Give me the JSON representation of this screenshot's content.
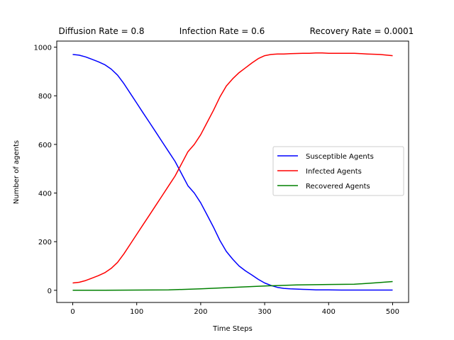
{
  "chart_data": {
    "type": "line",
    "title_parts": [
      "Diffusion Rate = 0.8",
      "Infection Rate = 0.6",
      "Recovery Rate = 0.0001"
    ],
    "xlabel": "Time Steps",
    "ylabel": "Number of agents",
    "xlim": [
      -25,
      525
    ],
    "ylim": [
      -50,
      1025
    ],
    "xticks": [
      0,
      100,
      200,
      300,
      400,
      500
    ],
    "yticks": [
      0,
      200,
      400,
      600,
      800,
      1000
    ],
    "legend_position": "center-right",
    "grid": false,
    "series": [
      {
        "name": "Susceptible Agents",
        "color": "#0000ff",
        "x": [
          0,
          10,
          20,
          30,
          40,
          50,
          60,
          70,
          80,
          90,
          100,
          110,
          120,
          130,
          140,
          150,
          160,
          170,
          180,
          190,
          200,
          210,
          220,
          230,
          240,
          250,
          260,
          270,
          280,
          290,
          300,
          310,
          320,
          330,
          340,
          350,
          360,
          370,
          380,
          390,
          400,
          420,
          440,
          460,
          480,
          500
        ],
        "y": [
          970,
          967,
          960,
          950,
          940,
          928,
          910,
          885,
          850,
          810,
          770,
          730,
          690,
          650,
          610,
          570,
          530,
          480,
          430,
          400,
          360,
          310,
          260,
          205,
          160,
          128,
          100,
          80,
          63,
          45,
          30,
          20,
          12,
          8,
          6,
          5,
          4,
          3,
          2,
          2,
          2,
          1,
          1,
          1,
          1,
          1
        ]
      },
      {
        "name": "Infected Agents",
        "color": "#ff0000",
        "x": [
          0,
          10,
          20,
          30,
          40,
          50,
          60,
          70,
          80,
          90,
          100,
          110,
          120,
          130,
          140,
          150,
          160,
          170,
          180,
          190,
          200,
          210,
          220,
          230,
          240,
          250,
          260,
          270,
          280,
          290,
          300,
          310,
          320,
          330,
          340,
          350,
          360,
          370,
          380,
          390,
          400,
          420,
          440,
          460,
          480,
          500
        ],
        "y": [
          30,
          33,
          40,
          50,
          60,
          72,
          90,
          115,
          150,
          190,
          230,
          270,
          310,
          350,
          390,
          430,
          470,
          520,
          570,
          600,
          640,
          690,
          740,
          795,
          840,
          870,
          895,
          915,
          935,
          953,
          965,
          970,
          972,
          972,
          973,
          974,
          975,
          975,
          976,
          976,
          975,
          975,
          975,
          972,
          970,
          965
        ]
      },
      {
        "name": "Recovered Agents",
        "color": "#008000",
        "x": [
          0,
          50,
          100,
          150,
          200,
          250,
          300,
          350,
          400,
          440,
          470,
          500
        ],
        "y": [
          0,
          0,
          1,
          2,
          6,
          12,
          18,
          22,
          24,
          25,
          30,
          36
        ]
      }
    ]
  }
}
